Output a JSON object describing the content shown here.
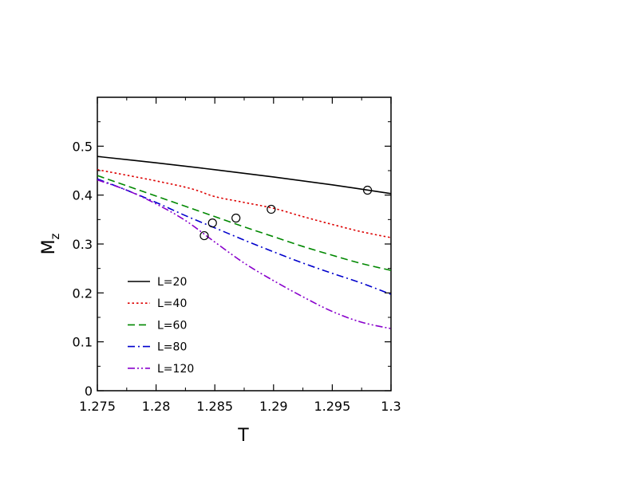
{
  "chart_data": {
    "type": "line",
    "title": "",
    "xlabel": "T",
    "ylabel": {
      "main": "M",
      "sub": "z"
    },
    "xlim": [
      1.275,
      1.3
    ],
    "ylim": [
      0,
      0.6
    ],
    "xticks": [
      1.275,
      1.28,
      1.285,
      1.29,
      1.295,
      1.3
    ],
    "xtick_labels": [
      "1.275",
      "1.28",
      "1.285",
      "1.29",
      "1.295",
      "1.3"
    ],
    "yticks": [
      0,
      0.1,
      0.2,
      0.3,
      0.4,
      0.5
    ],
    "ytick_labels": [
      "0",
      "0.1",
      "0.2",
      "0.3",
      "0.4",
      "0.5"
    ],
    "grid": false,
    "legend_position": "bottom-left",
    "series": [
      {
        "name": "L=20",
        "color": "#000000",
        "dash": "solid",
        "x": [
          1.275,
          1.28,
          1.285,
          1.29,
          1.295,
          1.3
        ],
        "y": [
          0.479,
          0.466,
          0.452,
          0.437,
          0.421,
          0.403
        ]
      },
      {
        "name": "L=40",
        "color": "#dd0000",
        "dash": "dotted",
        "x": [
          1.275,
          1.28,
          1.283,
          1.285,
          1.2875,
          1.29,
          1.2925,
          1.295,
          1.2975,
          1.3
        ],
        "y": [
          0.452,
          0.429,
          0.413,
          0.397,
          0.385,
          0.373,
          0.356,
          0.34,
          0.325,
          0.313
        ]
      },
      {
        "name": "L=60",
        "color": "#008800",
        "dash": "dashed",
        "x": [
          1.275,
          1.2775,
          1.28,
          1.2825,
          1.285,
          1.2875,
          1.29,
          1.2925,
          1.295,
          1.2975,
          1.3
        ],
        "y": [
          0.44,
          0.419,
          0.398,
          0.377,
          0.356,
          0.335,
          0.315,
          0.295,
          0.277,
          0.26,
          0.246
        ]
      },
      {
        "name": "L=80",
        "color": "#0000cc",
        "dash": "dashdot",
        "x": [
          1.275,
          1.2775,
          1.28,
          1.2825,
          1.285,
          1.2875,
          1.29,
          1.2925,
          1.295,
          1.2975,
          1.3
        ],
        "y": [
          0.433,
          0.41,
          0.385,
          0.358,
          0.333,
          0.308,
          0.284,
          0.261,
          0.24,
          0.22,
          0.197
        ]
      },
      {
        "name": "L=120",
        "color": "#8800cc",
        "dash": "dashdotdot",
        "x": [
          1.275,
          1.2775,
          1.28,
          1.2825,
          1.285,
          1.2875,
          1.29,
          1.2925,
          1.295,
          1.2975,
          1.3
        ],
        "y": [
          0.431,
          0.41,
          0.382,
          0.348,
          0.304,
          0.261,
          0.225,
          0.192,
          0.162,
          0.14,
          0.127
        ]
      }
    ],
    "markers": {
      "shape": "circle-open",
      "points": [
        {
          "x": 1.298,
          "y": 0.41
        },
        {
          "x": 1.2898,
          "y": 0.371
        },
        {
          "x": 1.2868,
          "y": 0.353
        },
        {
          "x": 1.2848,
          "y": 0.343
        },
        {
          "x": 1.2841,
          "y": 0.317
        }
      ]
    }
  }
}
